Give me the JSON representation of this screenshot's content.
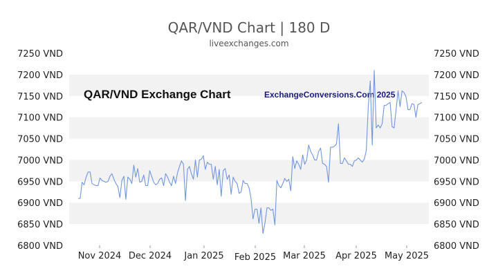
{
  "chart_data": {
    "type": "line",
    "title": "QAR/VND Chart | 180 D",
    "subtitle": "liveexchanges.com",
    "watermark_left": "QAR/VND Exchange Chart",
    "watermark_right": "ExchangeConversions.Com 2025",
    "xlabel": "",
    "ylabel": "",
    "ylim": [
      6800,
      7250
    ],
    "y_ticks": [
      7250,
      7200,
      7150,
      7100,
      7050,
      7000,
      6950,
      6900,
      6850,
      6800
    ],
    "y_unit": "VND",
    "x_ticks": [
      "Nov 2024",
      "Dec 2024",
      "Jan 2025",
      "Feb 2025",
      "Mar 2025",
      "Apr 2025",
      "May 2025"
    ],
    "grid": "alternating horizontal bands",
    "line_color": "#6f96dd",
    "band_color": "#f2f2f2",
    "series": [
      {
        "values": [
          6910,
          6910,
          6948,
          6942,
          6960,
          6972,
          6972,
          6945,
          6942,
          6940,
          6940,
          6958,
          6952,
          6950,
          6948,
          6950,
          6962,
          6968,
          6955,
          6945,
          6938,
          6912,
          6952,
          6962,
          6908,
          6960,
          6955,
          6945,
          6988,
          6960,
          6980,
          6948,
          6950,
          6965,
          6940,
          6940,
          6975,
          6962,
          6948,
          6942,
          6945,
          6955,
          6958,
          6940,
          6968,
          6960,
          6948,
          6940,
          6962,
          6945,
          6970,
          6985,
          6998,
          6990,
          6905,
          6978,
          6985,
          6968,
          6955,
          7000,
          6960,
          7000,
          7002,
          7010,
          6978,
          6995,
          6990,
          6990,
          6955,
          6985,
          6942,
          6978,
          6915,
          6975,
          6980,
          6955,
          6965,
          6920,
          6960,
          6950,
          6945,
          6922,
          6925,
          6952,
          6945,
          6945,
          6935,
          6910,
          6862,
          6885,
          6885,
          6852,
          6888,
          6828,
          6852,
          6888,
          6888,
          6882,
          6885,
          6848,
          6952,
          6940,
          6935,
          6945,
          6957,
          6950,
          6955,
          6928,
          7008,
          6980,
          6998,
          6990,
          6978,
          7012,
          6990,
          7000,
          7035,
          7020,
          7012,
          7000,
          7000,
          7020,
          7028,
          6992,
          6990,
          6985,
          6948,
          7030,
          7030,
          7032,
          7038,
          7085,
          6992,
          6992,
          7005,
          6998,
          6990,
          6990,
          6985,
          6998,
          7000,
          7005,
          7000,
          6995,
          7002,
          7022,
          7125,
          7185,
          7035,
          7210,
          7075,
          7082,
          7075,
          7085,
          7128,
          7128,
          7132,
          7135,
          7078,
          7075,
          7118,
          7162,
          7125,
          7162,
          7158,
          7148,
          7118,
          7118,
          7132,
          7130,
          7100,
          7130,
          7132,
          7135
        ]
      }
    ]
  }
}
